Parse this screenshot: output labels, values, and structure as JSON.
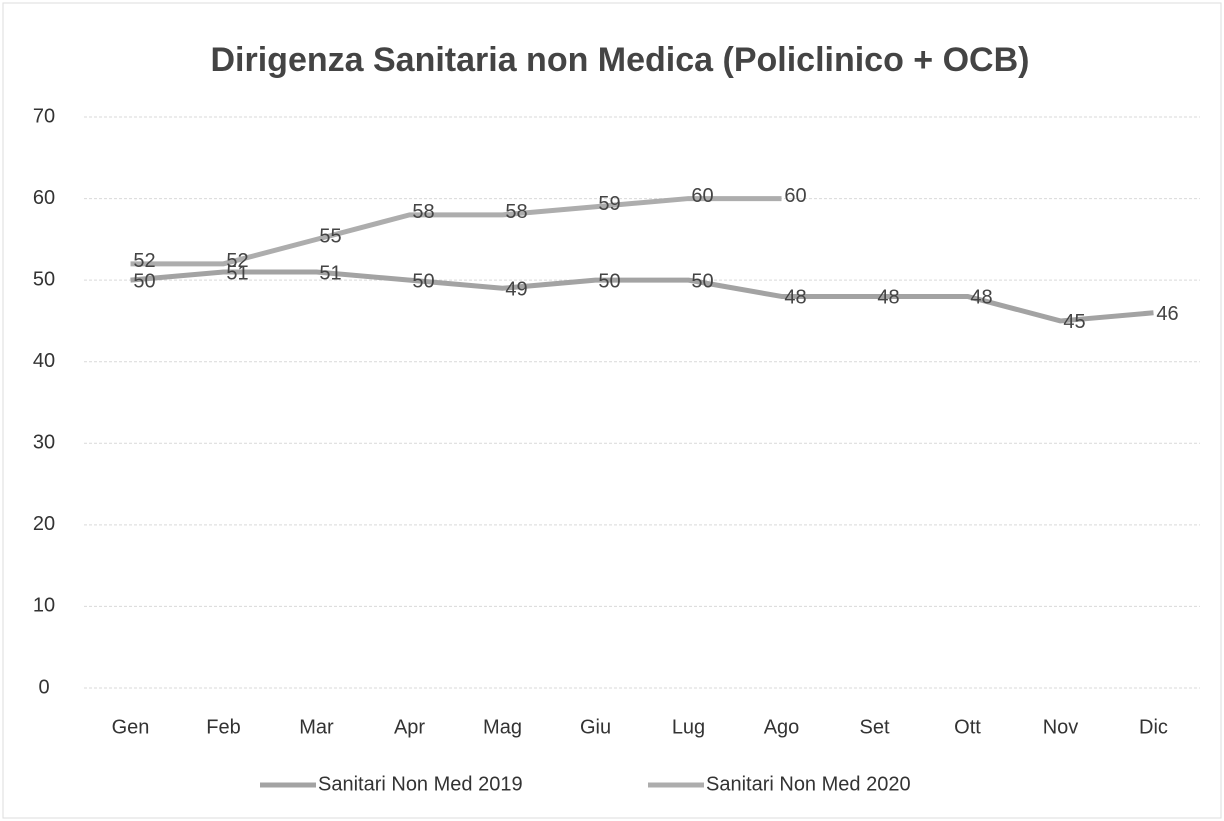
{
  "chart_data": {
    "type": "line",
    "title": "Dirigenza Sanitaria non Medica (Policlinico + OCB)",
    "categories": [
      "Gen",
      "Feb",
      "Mar",
      "Apr",
      "Mag",
      "Giu",
      "Lug",
      "Ago",
      "Set",
      "Ott",
      "Nov",
      "Dic"
    ],
    "series": [
      {
        "name": "Sanitari Non Med 2019",
        "color": "#a3a3a3",
        "values": [
          50,
          51,
          51,
          50,
          49,
          50,
          50,
          48,
          48,
          48,
          45,
          46
        ]
      },
      {
        "name": "Sanitari Non Med 2020",
        "color": "#adadad",
        "values": [
          52,
          52,
          55,
          58,
          58,
          59,
          60,
          60,
          null,
          null,
          null,
          null
        ]
      }
    ],
    "ylim": [
      0,
      70
    ],
    "yticks": [
      0,
      10,
      20,
      30,
      40,
      50,
      60,
      70
    ],
    "grid": true,
    "legend": "bottom"
  }
}
